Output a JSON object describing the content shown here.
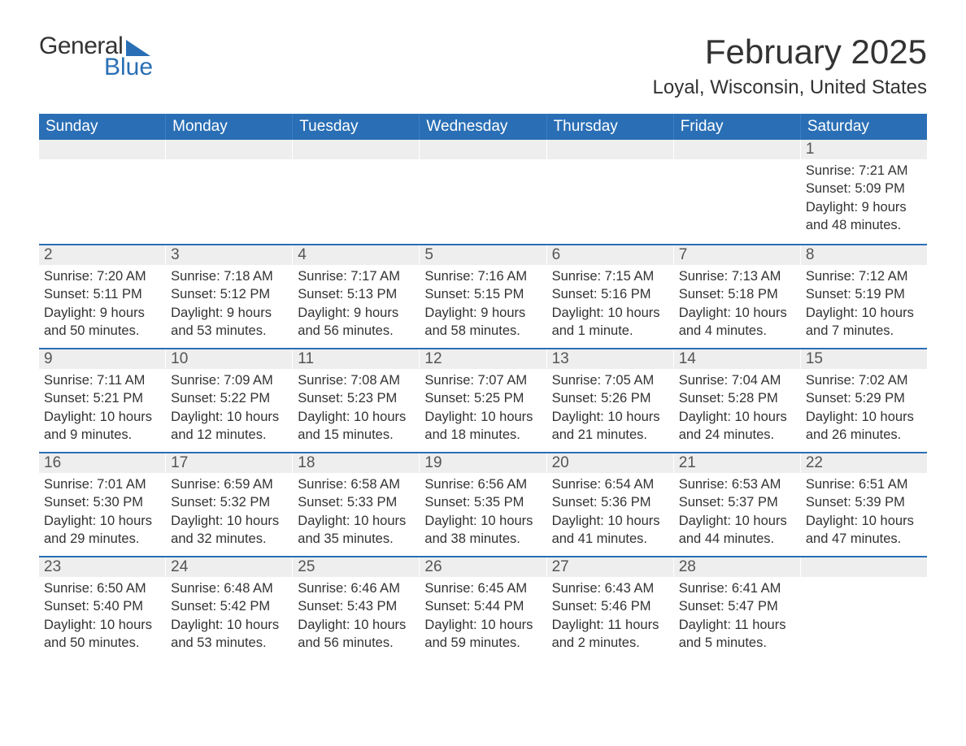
{
  "brand": {
    "word1": "General",
    "word2": "Blue"
  },
  "title": "February 2025",
  "location": "Loyal, Wisconsin, United States",
  "colors": {
    "header_bg": "#2a6fb5",
    "header_text": "#ffffff",
    "daynum_bg": "#eeeeee",
    "border": "#2a6fb5",
    "text": "#333333",
    "background": "#ffffff"
  },
  "dayHeaders": [
    "Sunday",
    "Monday",
    "Tuesday",
    "Wednesday",
    "Thursday",
    "Friday",
    "Saturday"
  ],
  "weeks": [
    [
      {
        "n": "",
        "sunrise": "",
        "sunset": "",
        "daylight": ""
      },
      {
        "n": "",
        "sunrise": "",
        "sunset": "",
        "daylight": ""
      },
      {
        "n": "",
        "sunrise": "",
        "sunset": "",
        "daylight": ""
      },
      {
        "n": "",
        "sunrise": "",
        "sunset": "",
        "daylight": ""
      },
      {
        "n": "",
        "sunrise": "",
        "sunset": "",
        "daylight": ""
      },
      {
        "n": "",
        "sunrise": "",
        "sunset": "",
        "daylight": ""
      },
      {
        "n": "1",
        "sunrise": "Sunrise: 7:21 AM",
        "sunset": "Sunset: 5:09 PM",
        "daylight": "Daylight: 9 hours and 48 minutes."
      }
    ],
    [
      {
        "n": "2",
        "sunrise": "Sunrise: 7:20 AM",
        "sunset": "Sunset: 5:11 PM",
        "daylight": "Daylight: 9 hours and 50 minutes."
      },
      {
        "n": "3",
        "sunrise": "Sunrise: 7:18 AM",
        "sunset": "Sunset: 5:12 PM",
        "daylight": "Daylight: 9 hours and 53 minutes."
      },
      {
        "n": "4",
        "sunrise": "Sunrise: 7:17 AM",
        "sunset": "Sunset: 5:13 PM",
        "daylight": "Daylight: 9 hours and 56 minutes."
      },
      {
        "n": "5",
        "sunrise": "Sunrise: 7:16 AM",
        "sunset": "Sunset: 5:15 PM",
        "daylight": "Daylight: 9 hours and 58 minutes."
      },
      {
        "n": "6",
        "sunrise": "Sunrise: 7:15 AM",
        "sunset": "Sunset: 5:16 PM",
        "daylight": "Daylight: 10 hours and 1 minute."
      },
      {
        "n": "7",
        "sunrise": "Sunrise: 7:13 AM",
        "sunset": "Sunset: 5:18 PM",
        "daylight": "Daylight: 10 hours and 4 minutes."
      },
      {
        "n": "8",
        "sunrise": "Sunrise: 7:12 AM",
        "sunset": "Sunset: 5:19 PM",
        "daylight": "Daylight: 10 hours and 7 minutes."
      }
    ],
    [
      {
        "n": "9",
        "sunrise": "Sunrise: 7:11 AM",
        "sunset": "Sunset: 5:21 PM",
        "daylight": "Daylight: 10 hours and 9 minutes."
      },
      {
        "n": "10",
        "sunrise": "Sunrise: 7:09 AM",
        "sunset": "Sunset: 5:22 PM",
        "daylight": "Daylight: 10 hours and 12 minutes."
      },
      {
        "n": "11",
        "sunrise": "Sunrise: 7:08 AM",
        "sunset": "Sunset: 5:23 PM",
        "daylight": "Daylight: 10 hours and 15 minutes."
      },
      {
        "n": "12",
        "sunrise": "Sunrise: 7:07 AM",
        "sunset": "Sunset: 5:25 PM",
        "daylight": "Daylight: 10 hours and 18 minutes."
      },
      {
        "n": "13",
        "sunrise": "Sunrise: 7:05 AM",
        "sunset": "Sunset: 5:26 PM",
        "daylight": "Daylight: 10 hours and 21 minutes."
      },
      {
        "n": "14",
        "sunrise": "Sunrise: 7:04 AM",
        "sunset": "Sunset: 5:28 PM",
        "daylight": "Daylight: 10 hours and 24 minutes."
      },
      {
        "n": "15",
        "sunrise": "Sunrise: 7:02 AM",
        "sunset": "Sunset: 5:29 PM",
        "daylight": "Daylight: 10 hours and 26 minutes."
      }
    ],
    [
      {
        "n": "16",
        "sunrise": "Sunrise: 7:01 AM",
        "sunset": "Sunset: 5:30 PM",
        "daylight": "Daylight: 10 hours and 29 minutes."
      },
      {
        "n": "17",
        "sunrise": "Sunrise: 6:59 AM",
        "sunset": "Sunset: 5:32 PM",
        "daylight": "Daylight: 10 hours and 32 minutes."
      },
      {
        "n": "18",
        "sunrise": "Sunrise: 6:58 AM",
        "sunset": "Sunset: 5:33 PM",
        "daylight": "Daylight: 10 hours and 35 minutes."
      },
      {
        "n": "19",
        "sunrise": "Sunrise: 6:56 AM",
        "sunset": "Sunset: 5:35 PM",
        "daylight": "Daylight: 10 hours and 38 minutes."
      },
      {
        "n": "20",
        "sunrise": "Sunrise: 6:54 AM",
        "sunset": "Sunset: 5:36 PM",
        "daylight": "Daylight: 10 hours and 41 minutes."
      },
      {
        "n": "21",
        "sunrise": "Sunrise: 6:53 AM",
        "sunset": "Sunset: 5:37 PM",
        "daylight": "Daylight: 10 hours and 44 minutes."
      },
      {
        "n": "22",
        "sunrise": "Sunrise: 6:51 AM",
        "sunset": "Sunset: 5:39 PM",
        "daylight": "Daylight: 10 hours and 47 minutes."
      }
    ],
    [
      {
        "n": "23",
        "sunrise": "Sunrise: 6:50 AM",
        "sunset": "Sunset: 5:40 PM",
        "daylight": "Daylight: 10 hours and 50 minutes."
      },
      {
        "n": "24",
        "sunrise": "Sunrise: 6:48 AM",
        "sunset": "Sunset: 5:42 PM",
        "daylight": "Daylight: 10 hours and 53 minutes."
      },
      {
        "n": "25",
        "sunrise": "Sunrise: 6:46 AM",
        "sunset": "Sunset: 5:43 PM",
        "daylight": "Daylight: 10 hours and 56 minutes."
      },
      {
        "n": "26",
        "sunrise": "Sunrise: 6:45 AM",
        "sunset": "Sunset: 5:44 PM",
        "daylight": "Daylight: 10 hours and 59 minutes."
      },
      {
        "n": "27",
        "sunrise": "Sunrise: 6:43 AM",
        "sunset": "Sunset: 5:46 PM",
        "daylight": "Daylight: 11 hours and 2 minutes."
      },
      {
        "n": "28",
        "sunrise": "Sunrise: 6:41 AM",
        "sunset": "Sunset: 5:47 PM",
        "daylight": "Daylight: 11 hours and 5 minutes."
      },
      {
        "n": "",
        "sunrise": "",
        "sunset": "",
        "daylight": ""
      }
    ]
  ]
}
